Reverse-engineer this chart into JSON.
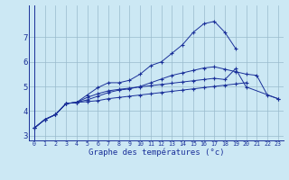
{
  "xlabel": "Graphe des températures (°c)",
  "bg_color": "#cce8f4",
  "line_color": "#1a3099",
  "grid_color": "#99bbcc",
  "xlim": [
    -0.5,
    23.5
  ],
  "ylim": [
    2.8,
    8.3
  ],
  "xticks": [
    0,
    1,
    2,
    3,
    4,
    5,
    6,
    7,
    8,
    9,
    10,
    11,
    12,
    13,
    14,
    15,
    16,
    17,
    18,
    19,
    20,
    21,
    22,
    23
  ],
  "yticks": [
    3,
    4,
    5,
    6,
    7
  ],
  "series": [
    [
      3.3,
      3.65,
      3.85,
      4.3,
      4.35,
      4.65,
      4.95,
      5.15,
      5.15,
      5.25,
      5.5,
      5.85,
      6.0,
      6.35,
      6.7,
      7.2,
      7.55,
      7.65,
      7.2,
      6.55,
      null,
      null,
      null,
      null
    ],
    [
      3.3,
      3.65,
      3.85,
      4.3,
      4.35,
      4.45,
      4.6,
      4.75,
      4.85,
      4.9,
      5.0,
      5.15,
      5.3,
      5.45,
      5.55,
      5.65,
      5.75,
      5.8,
      5.7,
      5.6,
      5.5,
      5.45,
      4.65,
      4.5
    ],
    [
      3.3,
      3.65,
      3.85,
      4.3,
      4.35,
      4.38,
      4.42,
      4.5,
      4.55,
      4.6,
      4.65,
      4.7,
      4.75,
      4.8,
      4.85,
      4.9,
      4.95,
      5.0,
      5.05,
      5.1,
      5.15,
      null,
      null,
      null
    ],
    [
      3.3,
      3.65,
      3.85,
      4.3,
      4.35,
      4.55,
      4.7,
      4.82,
      4.88,
      4.93,
      4.98,
      5.03,
      5.08,
      5.13,
      5.18,
      5.23,
      5.28,
      5.33,
      5.28,
      5.72,
      4.98,
      null,
      null,
      4.5
    ]
  ]
}
